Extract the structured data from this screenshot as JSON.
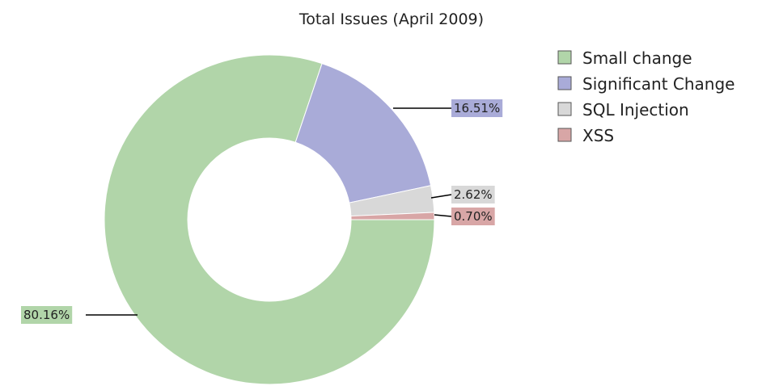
{
  "chart_data": {
    "type": "pie",
    "donut": true,
    "title": "Total Issues (April 2009)",
    "legend_position": "right",
    "slices": [
      {
        "name": "Small change",
        "value": 80.16,
        "label": "80.16%",
        "color": "#b1d5a9",
        "label_color": "#b1d5a9"
      },
      {
        "name": "Significant Change",
        "value": 16.51,
        "label": "16.51%",
        "color": "#a9abd8",
        "label_color": "#a9abd8"
      },
      {
        "name": "SQL Injection",
        "value": 2.62,
        "label": "2.62%",
        "color": "#d8d8d8",
        "label_color": "#d8d8d8"
      },
      {
        "name": "XSS",
        "value": 0.7,
        "label": "0.70%",
        "color": "#d8a6a6",
        "label_color": "#d8a6a6"
      }
    ]
  }
}
